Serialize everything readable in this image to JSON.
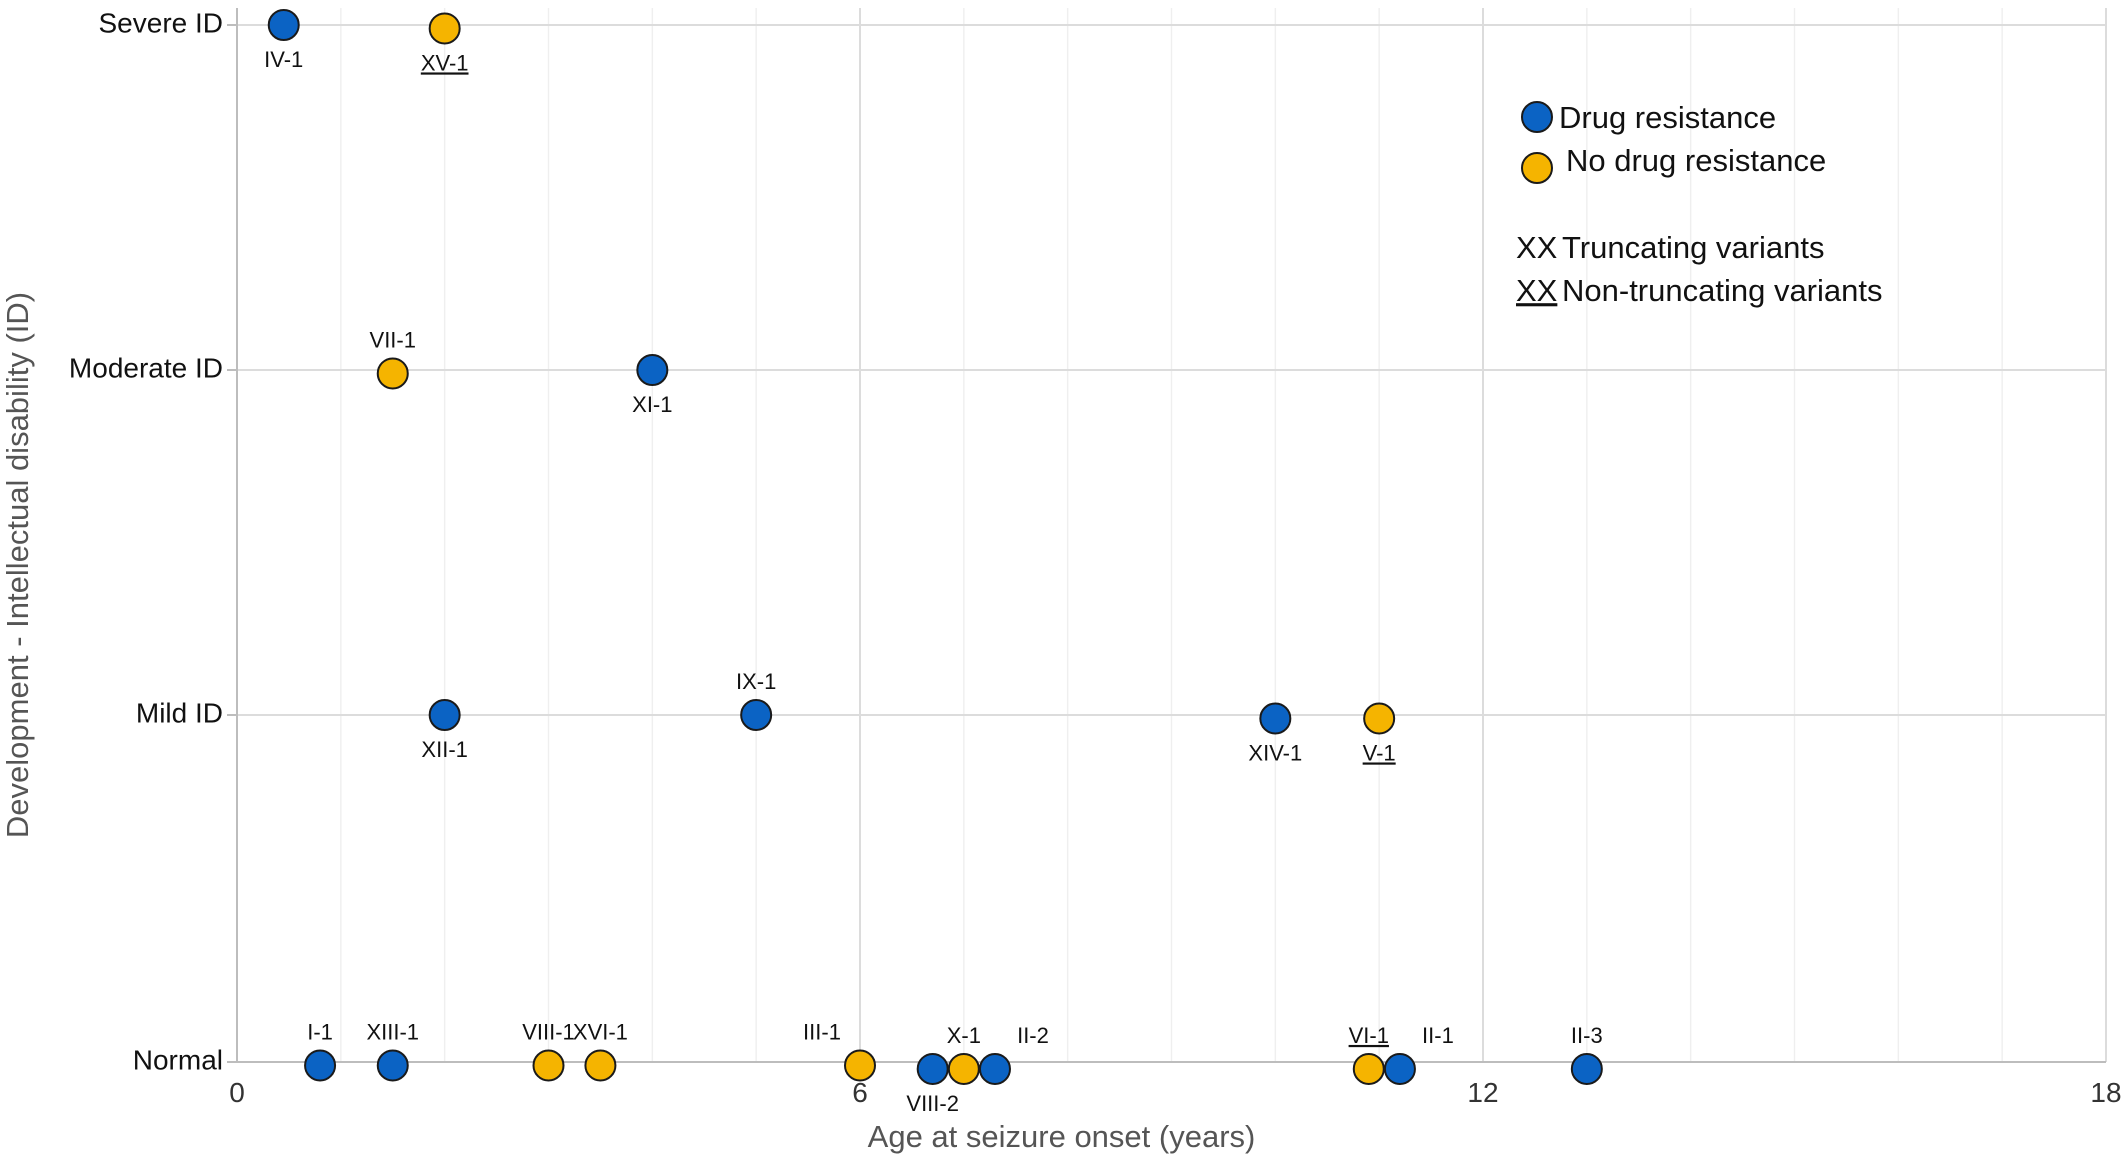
{
  "chart_data": {
    "type": "scatter",
    "xlabel": "Age at seizure onset (years)",
    "ylabel": "Development - Intellectual disability (ID)",
    "xlim": [
      0,
      18
    ],
    "x_ticks": [
      0,
      6,
      12,
      18
    ],
    "x_tick_labels": [
      "0",
      "6",
      "12",
      "18"
    ],
    "y_categories": [
      "Normal",
      "Mild ID",
      "Moderate ID",
      "Severe ID"
    ],
    "grid": true,
    "legend_position": "top-right",
    "colors": {
      "drug_resistance": "#0b63c4",
      "no_drug_resistance": "#f5b400"
    },
    "legend": {
      "drug_resistance": "Drug resistance",
      "no_drug_resistance": "No drug resistance",
      "truncating_marker": "XX",
      "truncating": "Truncating variants",
      "non_truncating_marker": "XX",
      "non_truncating": "Non-truncating variants"
    },
    "points": [
      {
        "label": "IV-1",
        "x": 0.45,
        "y": 3,
        "group": "drug_resistance",
        "truncating": true,
        "label_pos": "below"
      },
      {
        "label": "XV-1",
        "x": 2.0,
        "y": 2.99,
        "group": "no_drug_resistance",
        "truncating": false,
        "label_pos": "below"
      },
      {
        "label": "VII-1",
        "x": 1.5,
        "y": 1.99,
        "group": "no_drug_resistance",
        "truncating": true,
        "label_pos": "above"
      },
      {
        "label": "XI-1",
        "x": 4.0,
        "y": 2.0,
        "group": "drug_resistance",
        "truncating": true,
        "label_pos": "below"
      },
      {
        "label": "XII-1",
        "x": 2.0,
        "y": 1.0,
        "group": "drug_resistance",
        "truncating": true,
        "label_pos": "below"
      },
      {
        "label": "IX-1",
        "x": 5.0,
        "y": 1.0,
        "group": "drug_resistance",
        "truncating": true,
        "label_pos": "above"
      },
      {
        "label": "XIV-1",
        "x": 10.0,
        "y": 0.99,
        "group": "drug_resistance",
        "truncating": true,
        "label_pos": "below"
      },
      {
        "label": "V-1",
        "x": 11.0,
        "y": 0.99,
        "group": "no_drug_resistance",
        "truncating": false,
        "label_pos": "below"
      },
      {
        "label": "I-1",
        "x": 0.8,
        "y": -0.01,
        "group": "drug_resistance",
        "truncating": true,
        "label_pos": "above"
      },
      {
        "label": "XIII-1",
        "x": 1.5,
        "y": -0.01,
        "group": "drug_resistance",
        "truncating": true,
        "label_pos": "above"
      },
      {
        "label": "VIII-1",
        "x": 3.0,
        "y": -0.01,
        "group": "no_drug_resistance",
        "truncating": true,
        "label_pos": "above"
      },
      {
        "label": "XVI-1",
        "x": 3.5,
        "y": -0.01,
        "group": "no_drug_resistance",
        "truncating": true,
        "label_pos": "above"
      },
      {
        "label": "III-1",
        "x": 6.0,
        "y": -0.01,
        "group": "no_drug_resistance",
        "truncating": true,
        "label_pos": "above-left"
      },
      {
        "label": "VIII-2",
        "x": 6.7,
        "y": -0.02,
        "group": "drug_resistance",
        "truncating": true,
        "label_pos": "below"
      },
      {
        "label": "X-1",
        "x": 7.0,
        "y": -0.02,
        "group": "no_drug_resistance",
        "truncating": true,
        "label_pos": "above"
      },
      {
        "label": "II-2",
        "x": 7.3,
        "y": -0.02,
        "group": "drug_resistance",
        "truncating": true,
        "label_pos": "above-right"
      },
      {
        "label": "VI-1",
        "x": 10.9,
        "y": -0.02,
        "group": "no_drug_resistance",
        "truncating": false,
        "label_pos": "above"
      },
      {
        "label": "II-1",
        "x": 11.2,
        "y": -0.02,
        "group": "drug_resistance",
        "truncating": true,
        "label_pos": "above-right"
      },
      {
        "label": "II-3",
        "x": 13.0,
        "y": -0.02,
        "group": "drug_resistance",
        "truncating": true,
        "label_pos": "above"
      }
    ]
  }
}
